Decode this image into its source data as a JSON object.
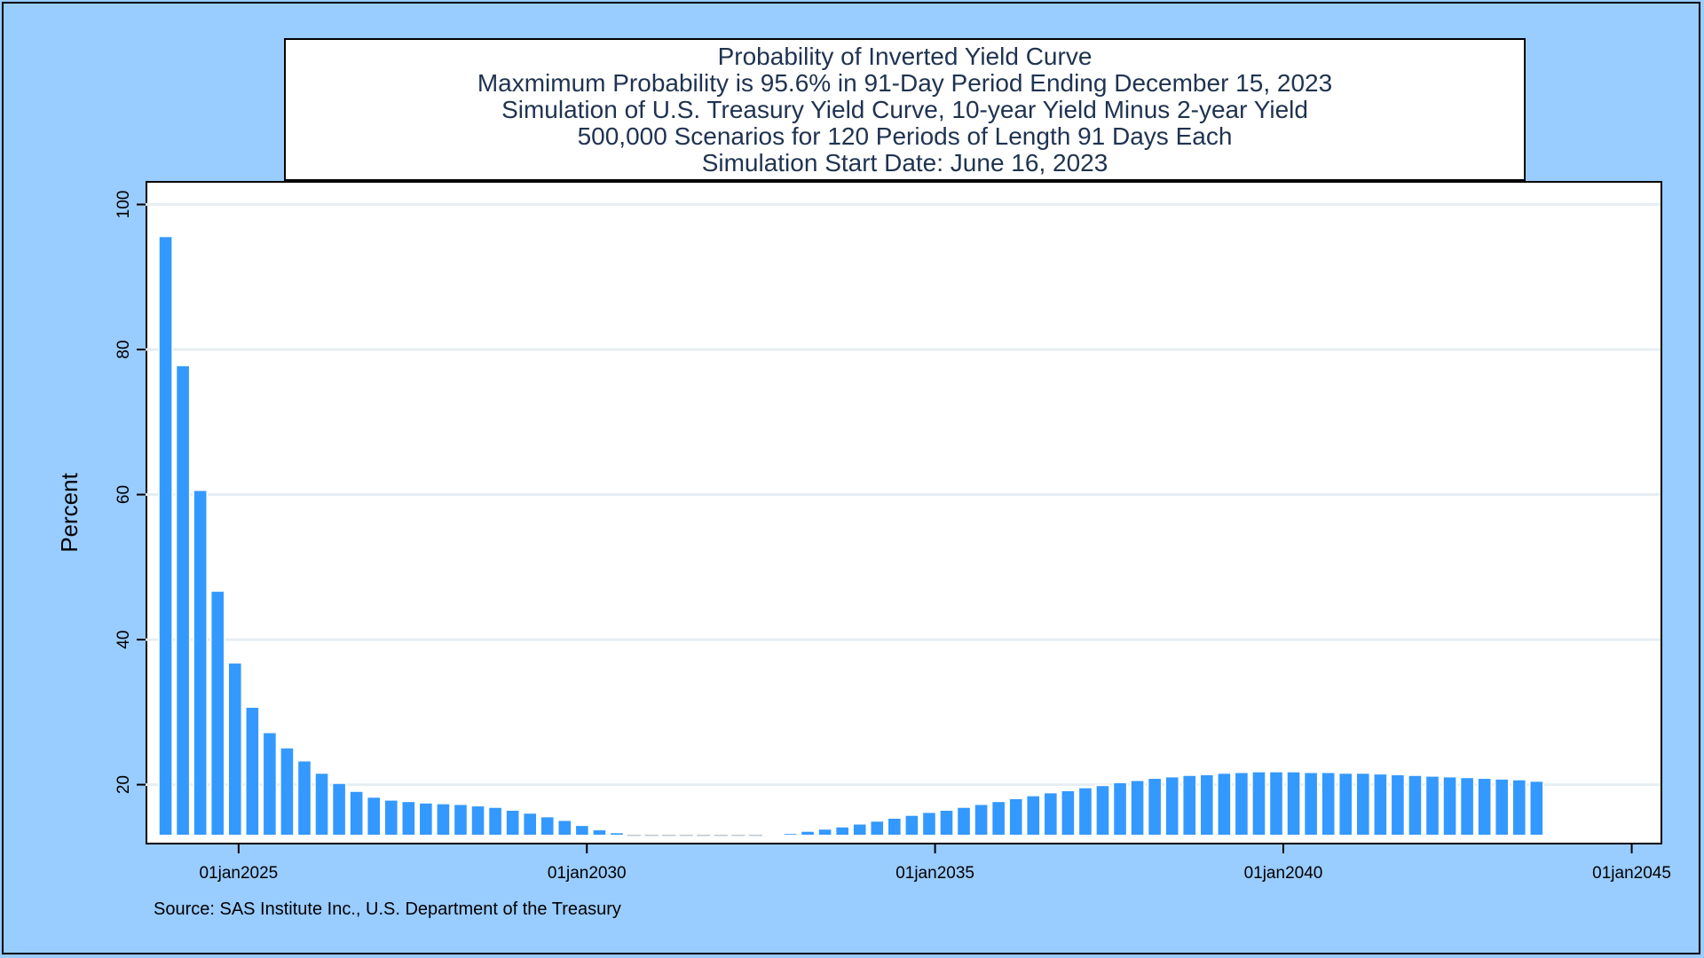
{
  "titles": [
    "Probability of Inverted Yield Curve",
    "Maxmimum Probability is 95.6% in 91-Day Period Ending December 15, 2023",
    "Simulation of U.S. Treasury Yield Curve, 10-year Yield Minus 2-year Yield",
    "500,000 Scenarios for 120 Periods of Length 91 Days Each",
    "Simulation Start Date: June 16, 2023"
  ],
  "source": "Source: SAS Institute Inc., U.S. Department of the Treasury",
  "colors": {
    "background": "#99ccff",
    "bar": "#3399ff",
    "bar_outline": "#ffffff",
    "gridline": "#e6eef2"
  },
  "chart_data": {
    "type": "bar",
    "ylabel": "Percent",
    "xlabel": "",
    "ylim": [
      12,
      103
    ],
    "xlim": [
      "2023-09-01",
      "2045-06-01"
    ],
    "yticks": [
      20,
      40,
      60,
      80,
      100
    ],
    "ytick_labels": [
      "20",
      "40",
      "60",
      "80",
      "100"
    ],
    "xticks": [
      "2025-01-01",
      "2030-01-01",
      "2035-01-01",
      "2040-01-01",
      "2045-01-01"
    ],
    "xtick_labels": [
      "01jan2025",
      "01jan2030",
      "01jan2035",
      "01jan2040",
      "01jan2045"
    ],
    "grid": "horizontal",
    "baseline": 13,
    "period_ends": [
      "2023-12-15",
      "2024-03-15",
      "2024-06-14",
      "2024-09-13",
      "2024-12-13",
      "2025-03-14",
      "2025-06-13",
      "2025-09-12",
      "2025-12-12",
      "2026-03-13",
      "2026-06-12",
      "2026-09-11",
      "2026-12-11",
      "2027-03-12",
      "2027-06-11",
      "2027-09-10",
      "2027-12-10",
      "2028-03-10",
      "2028-06-09",
      "2028-09-08",
      "2028-12-08",
      "2029-03-09",
      "2029-06-08",
      "2029-09-07",
      "2029-12-07",
      "2030-03-08",
      "2030-06-07",
      "2030-09-06",
      "2030-12-06",
      "2031-03-07",
      "2031-06-06",
      "2031-09-05",
      "2031-12-05",
      "2032-03-05",
      "2032-06-04",
      "2032-09-03",
      "2032-12-03",
      "2033-03-04",
      "2033-06-03",
      "2033-09-02",
      "2033-12-02",
      "2034-03-03",
      "2034-06-02",
      "2034-09-01",
      "2034-12-01",
      "2035-03-02",
      "2035-06-01",
      "2035-08-31",
      "2035-11-30",
      "2036-02-29",
      "2036-05-30",
      "2036-08-29",
      "2036-11-28",
      "2037-02-27",
      "2037-05-29",
      "2037-08-28",
      "2037-11-27",
      "2038-02-26",
      "2038-05-28",
      "2038-08-27",
      "2038-11-26",
      "2039-02-25",
      "2039-05-27",
      "2039-08-26",
      "2039-11-25",
      "2040-02-24",
      "2040-05-25",
      "2040-08-24",
      "2040-11-23",
      "2041-02-22",
      "2041-05-24",
      "2041-08-23",
      "2041-11-22",
      "2042-02-21",
      "2042-05-23",
      "2042-08-22",
      "2042-11-21",
      "2043-02-20",
      "2043-05-22",
      "2043-08-21"
    ],
    "values": [
      95.6,
      77.8,
      60.6,
      46.7,
      36.8,
      30.7,
      27.2,
      25.1,
      23.3,
      21.6,
      20.2,
      19.1,
      18.3,
      17.9,
      17.7,
      17.5,
      17.4,
      17.3,
      17.1,
      16.9,
      16.5,
      16.1,
      15.6,
      15.1,
      14.4,
      13.8,
      13.4,
      12.9,
      12.6,
      12.3,
      12.1,
      12.1,
      12.2,
      12.4,
      12.8,
      13.1,
      13.3,
      13.6,
      13.9,
      14.2,
      14.6,
      15.0,
      15.4,
      15.8,
      16.2,
      16.5,
      16.9,
      17.3,
      17.7,
      18.1,
      18.5,
      18.9,
      19.2,
      19.6,
      19.9,
      20.3,
      20.6,
      20.9,
      21.1,
      21.3,
      21.4,
      21.6,
      21.7,
      21.8,
      21.8,
      21.8,
      21.7,
      21.7,
      21.6,
      21.6,
      21.5,
      21.4,
      21.3,
      21.2,
      21.1,
      21.0,
      20.9,
      20.8,
      20.7,
      20.5
    ]
  }
}
